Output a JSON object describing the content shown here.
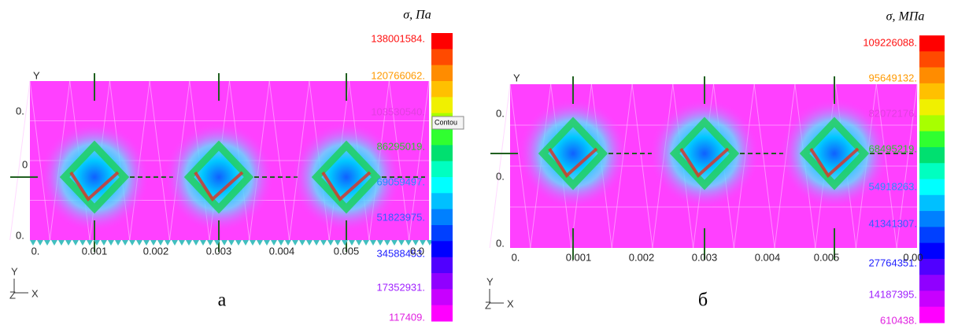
{
  "panels": [
    {
      "caption": "а",
      "unit": "σ, Па",
      "popup": "Contou",
      "axis": {
        "y": "Y",
        "z": "Z",
        "x": "X"
      },
      "x_ticks": [
        "0.",
        "0.001",
        "0.002",
        "0.003",
        "0.004",
        "0.005",
        "0.0"
      ],
      "y_ticks": [
        "Y",
        "0.",
        "0",
        "0."
      ],
      "colorbar_labels": [
        "138001584.",
        "120766062.",
        "103530540.",
        "86295019.",
        "69059497.",
        "51823975.",
        "34588453.",
        "17352931.",
        "117409."
      ]
    },
    {
      "caption": "б",
      "unit": "σ, МПа",
      "axis": {
        "y": "Y",
        "z": "Z",
        "x": "X"
      },
      "x_ticks": [
        "0.",
        "0.001",
        "0.002",
        "0.003",
        "0.004",
        "0.005",
        "0.00"
      ],
      "y_ticks": [
        "Y",
        "0.",
        "0.",
        "0."
      ],
      "colorbar_labels": [
        "109226088.",
        "95649132.",
        "82072176.",
        "68495219.",
        "54918263.",
        "41341307.",
        "27764351.",
        "14187395.",
        "610438."
      ]
    }
  ]
}
